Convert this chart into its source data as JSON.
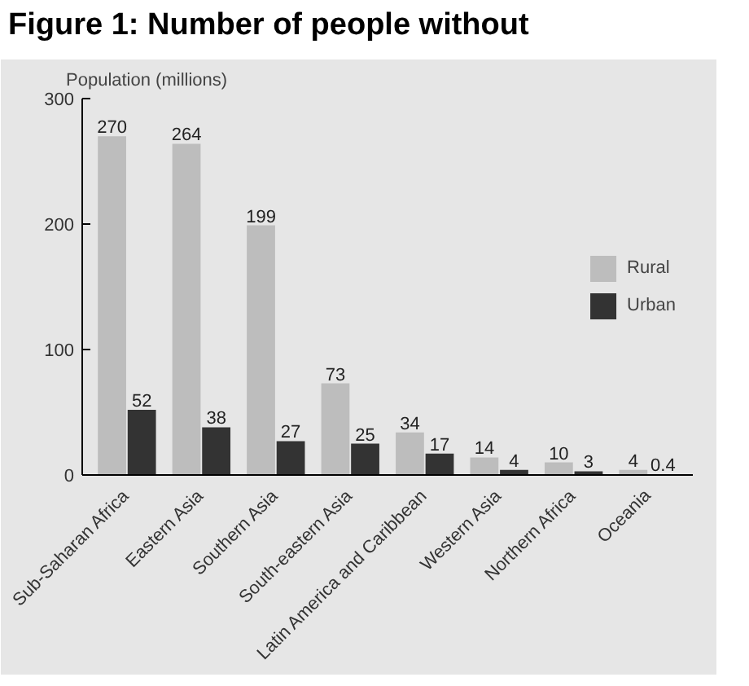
{
  "chart_data": {
    "type": "bar",
    "title": "Figure 1: Number of people without",
    "ylabel": "Population (millions)",
    "categories": [
      "Sub-Saharan Africa",
      "Eastern Asia",
      "Southern Asia",
      "South-eastern Asia",
      "Latin America and Caribbean",
      "Western Asia",
      "Northern Africa",
      "Oceania"
    ],
    "series": [
      {
        "name": "Rural",
        "color": "#bdbdbd",
        "values": [
          270,
          264,
          199,
          73,
          34,
          14,
          10,
          4
        ]
      },
      {
        "name": "Urban",
        "color": "#333333",
        "values": [
          52,
          38,
          27,
          25,
          17,
          4,
          3,
          0.4
        ]
      }
    ],
    "ylim": [
      0,
      300
    ],
    "yticks": [
      0,
      100,
      200,
      300
    ],
    "legend": "right",
    "data_labels": true
  }
}
